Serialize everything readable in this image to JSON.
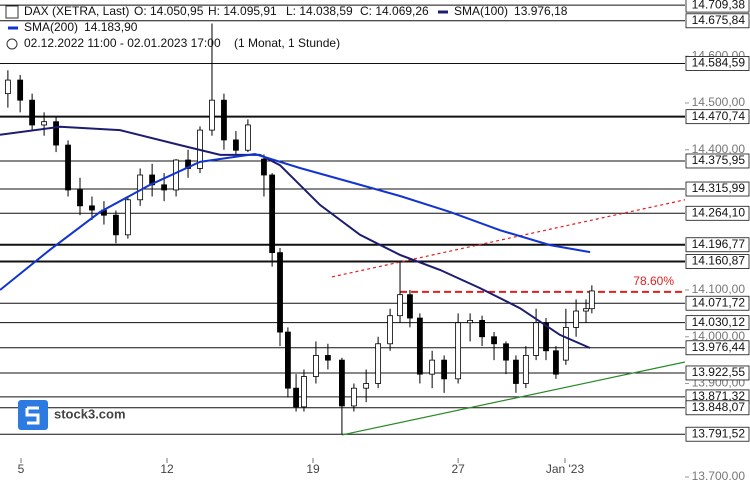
{
  "chart_data": {
    "type": "candlestick",
    "header": {
      "symbol": "DAX (XETRA, Last)",
      "open": "O: 14.050,95",
      "high": "H: 14.095,91",
      "low": "L: 14.038,59",
      "close": "C: 14.069,26",
      "range": "02.12.2022 11:00 - 02.01.2023 17:00",
      "period": "(1 Monat, 1 Stunde)"
    },
    "logo": "stock3.com",
    "x": [
      0.55,
      0.97,
      1.38,
      1.79,
      2.2,
      2.61,
      3.02,
      3.43,
      3.84,
      4.25,
      4.66,
      5.08,
      5.49,
      5.9,
      6.31,
      6.72,
      7.13,
      7.54,
      7.95,
      8.36,
      8.77,
      9.32,
      9.6,
      9.87,
      10.14,
      10.42,
      10.69,
      11.1,
      11.51,
      11.99,
      12.4,
      12.82,
      13.23,
      13.64,
      13.98,
      14.32,
      14.66,
      15.08,
      15.49,
      15.97,
      16.38,
      16.79,
      17.2,
      17.61,
      17.95,
      18.29,
      18.64,
      18.98,
      19.32,
      19.66,
      20.01,
      20.35,
      20.55
    ],
    "open": [
      14520,
      14549,
      14506,
      14453,
      14460,
      14410,
      14314,
      14280,
      14271,
      14260,
      14218,
      14293,
      14346,
      14325,
      14314,
      14378,
      14360,
      14442,
      14506,
      14421,
      14399,
      14380,
      14346,
      14180,
      14010,
      13890,
      13850,
      13915,
      13960,
      13950,
      13852,
      13890,
      13900,
      13985,
      14045,
      14090,
      14040,
      13920,
      13950,
      13910,
      14030,
      14035,
      14000,
      13985,
      13950,
      13900,
      13960,
      14030,
      13970,
      13950,
      14020,
      14055,
      14060
    ],
    "high": [
      14570,
      14560,
      14520,
      14480,
      14470,
      14420,
      14340,
      14300,
      14290,
      14270,
      14300,
      14360,
      14370,
      14350,
      14380,
      14400,
      14450,
      14670,
      14520,
      14440,
      14465,
      14390,
      14350,
      14190,
      14020,
      13920,
      13930,
      13990,
      13985,
      13955,
      13900,
      13930,
      14000,
      14060,
      14160,
      14100,
      14050,
      13970,
      13960,
      14050,
      14050,
      14045,
      14010,
      13990,
      13960,
      13980,
      14060,
      14040,
      13980,
      14060,
      14080,
      14080,
      14110
    ],
    "low": [
      14490,
      14480,
      14440,
      14430,
      14395,
      14300,
      14260,
      14250,
      14240,
      14200,
      14210,
      14280,
      14300,
      14290,
      14300,
      14340,
      14350,
      14430,
      14400,
      14390,
      14395,
      14300,
      14150,
      13980,
      13870,
      13840,
      13840,
      13900,
      13930,
      13791,
      13840,
      13860,
      13890,
      13970,
      14030,
      14020,
      13900,
      13890,
      13880,
      13900,
      13990,
      13980,
      13950,
      13920,
      13880,
      13890,
      13950,
      13950,
      13910,
      13940,
      14000,
      14030,
      14050
    ],
    "close": [
      14549,
      14506,
      14453,
      14460,
      14410,
      14314,
      14280,
      14271,
      14260,
      14218,
      14293,
      14346,
      14325,
      14314,
      14378,
      14360,
      14442,
      14506,
      14421,
      14399,
      14453,
      14346,
      14180,
      14010,
      13890,
      13850,
      13915,
      13960,
      13950,
      13852,
      13890,
      13900,
      13985,
      14045,
      14090,
      14040,
      13920,
      13950,
      13910,
      14030,
      14035,
      14000,
      13985,
      13950,
      13900,
      13960,
      14030,
      13970,
      13920,
      14020,
      14055,
      14060,
      14098
    ],
    "up_color": "#ffffff",
    "down_color": "#000000",
    "xlim": [
      0.28,
      23.74
    ],
    "ylim": [
      13693.6,
      14720.3
    ],
    "xticks": [
      {
        "value": 1,
        "label": "5"
      },
      {
        "value": 6,
        "label": "12"
      },
      {
        "value": 11,
        "label": "19"
      },
      {
        "value": 15.97,
        "label": "27"
      },
      {
        "value": 19.63,
        "label": "Jan '23"
      }
    ],
    "yticks": [
      {
        "value": 14600,
        "label": "14.600,00"
      },
      {
        "value": 14500,
        "label": "14.500,00"
      },
      {
        "value": 14400,
        "label": "14.400,00"
      },
      {
        "value": 14100,
        "label": "14.100,00"
      },
      {
        "value": 14000,
        "label": "14.000,00"
      },
      {
        "value": 13900,
        "label": "13.900,00"
      },
      {
        "value": 13700,
        "label": "13.700,00"
      }
    ],
    "indicators": [
      {
        "name": "SMA(100)",
        "value_label": "13.976,18",
        "color": "#1c1c70",
        "x": [
          0.28,
          2.34,
          4.39,
          6.45,
          7.82,
          9.18,
          9.87,
          11.24,
          12.61,
          13.98,
          15.35,
          16.72,
          18.09,
          19.46,
          20.49
        ],
        "values": [
          14432,
          14449,
          14442,
          14410,
          14389,
          14389,
          14367,
          14282,
          14218,
          14175,
          14143,
          14104,
          14061,
          14004,
          13976
        ]
      },
      {
        "name": "SMA(200)",
        "value_label": "14.183,90",
        "color": "#1234d0",
        "x": [
          0.28,
          1.99,
          3.71,
          5.42,
          7.13,
          9.01,
          10.55,
          12.27,
          13.98,
          15.69,
          17.4,
          19.12,
          20.49
        ],
        "values": [
          14100,
          14186,
          14267,
          14325,
          14374,
          14391,
          14361,
          14331,
          14301,
          14267,
          14228,
          14196,
          14181
        ]
      }
    ],
    "levels": [
      {
        "value": 14709.38,
        "label": "14.709,38",
        "bold": false
      },
      {
        "value": 14675.84,
        "label": "14.675,84",
        "bold": false
      },
      {
        "value": 14584.59,
        "label": "14.584,59",
        "bold": false
      },
      {
        "value": 14470.74,
        "label": "14.470,74",
        "bold": true
      },
      {
        "value": 14375.95,
        "label": "14.375,95",
        "bold": false
      },
      {
        "value": 14315.99,
        "label": "14.315,99",
        "bold": false
      },
      {
        "value": 14264.1,
        "label": "14.264,10",
        "bold": false
      },
      {
        "value": 14196.77,
        "label": "14.196,77",
        "bold": true
      },
      {
        "value": 14160.87,
        "label": "14.160,87",
        "bold": true
      },
      {
        "value": 14071.72,
        "label": "14.071,72",
        "bold": false
      },
      {
        "value": 14030.12,
        "label": "14.030,12",
        "bold": false
      },
      {
        "value": 13976.44,
        "label": "13.976,44",
        "bold": false
      },
      {
        "value": 13922.55,
        "label": "13.922,55",
        "bold": false
      },
      {
        "value": 13871.32,
        "label": "13.871,32",
        "bold": false
      },
      {
        "value": 13848.07,
        "label": "13.848,07",
        "bold": false
      },
      {
        "value": 13791.52,
        "label": "13.791,52",
        "bold": false
      }
    ],
    "trendlines": [
      {
        "color": "#e02020",
        "dash": "3,3",
        "x": [
          11.65,
          23.74
        ],
        "values": [
          14128,
          14293
        ]
      },
      {
        "color": "#2a8a2a",
        "dash": "none",
        "x": [
          11.99,
          23.74
        ],
        "values": [
          13790,
          13946
        ]
      }
    ],
    "fib": {
      "label": "78.60%",
      "value": 14096,
      "x": [
        13.98,
        23.74
      ],
      "color": "#e02020"
    }
  }
}
